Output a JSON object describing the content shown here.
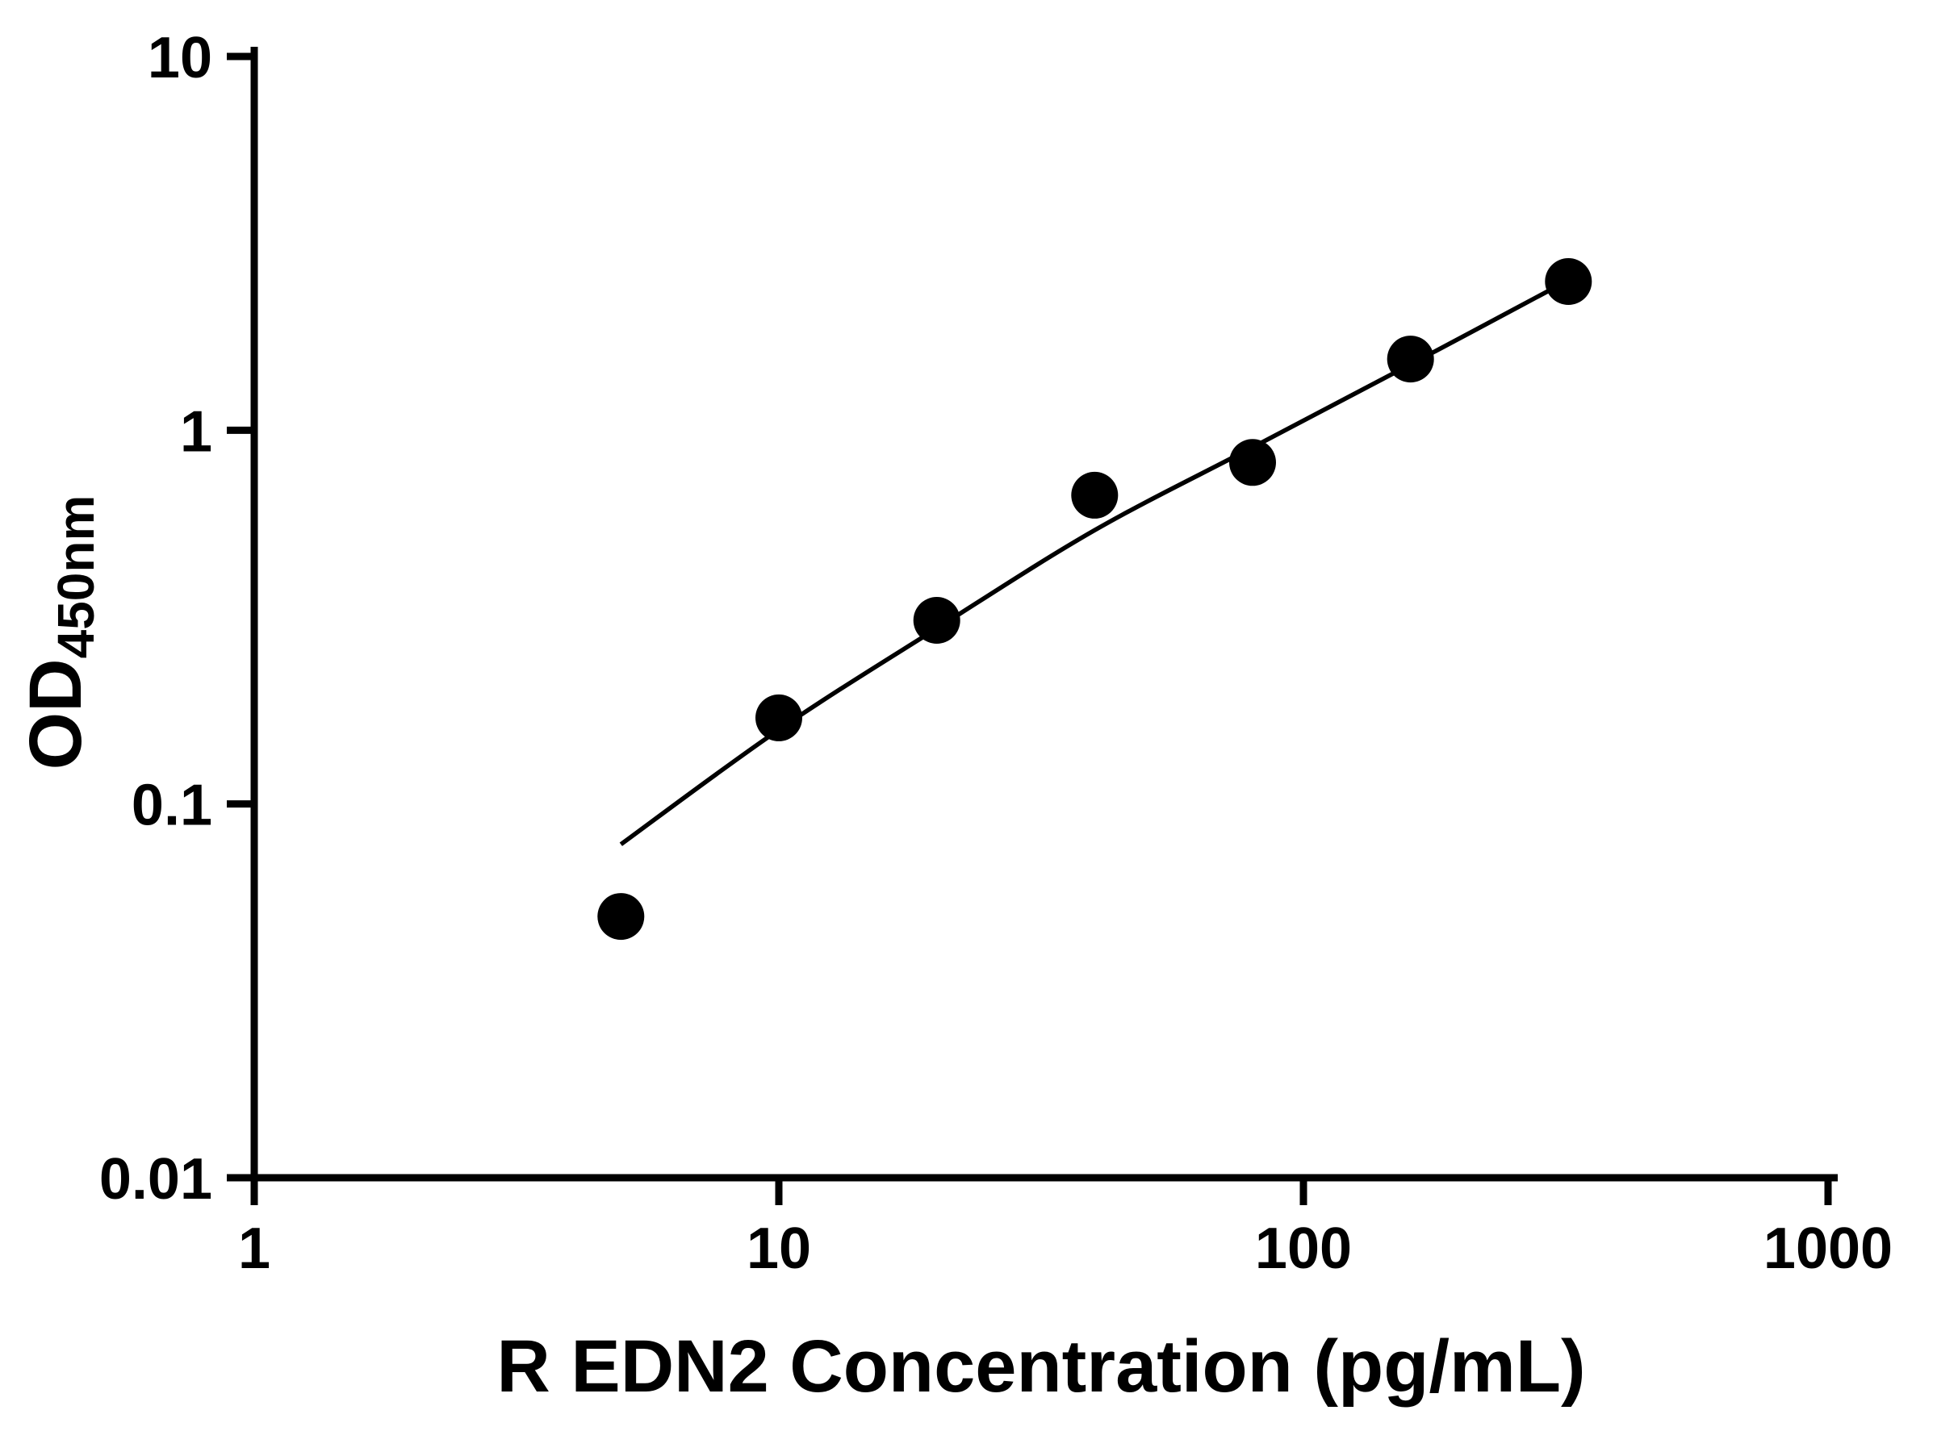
{
  "chart_data": {
    "type": "scatter",
    "title": "",
    "xlabel": "R EDN2 Concentration (pg/mL)",
    "ylabel": "OD450nm",
    "ylabel_main": "OD",
    "ylabel_sub": "450nm",
    "x_scale": "log",
    "y_scale": "log",
    "xlim": [
      1,
      1000
    ],
    "ylim": [
      0.01,
      10
    ],
    "x_ticks": [
      1,
      10,
      100,
      1000
    ],
    "y_ticks": [
      0.01,
      0.1,
      1,
      10
    ],
    "grid": false,
    "legend": false,
    "marker_color": "#000000",
    "line_color": "#000000",
    "series": [
      {
        "name": "standard-points",
        "marker": "circle",
        "color": "#000000",
        "x": [
          5,
          10,
          20,
          40,
          80,
          160,
          320
        ],
        "y": [
          0.05,
          0.17,
          0.31,
          0.67,
          0.82,
          1.55,
          2.5
        ]
      }
    ],
    "fit_curve": {
      "name": "standard-curve-fit",
      "color": "#000000",
      "x": [
        5,
        10,
        20,
        40,
        80,
        160,
        320
      ],
      "y": [
        0.078,
        0.158,
        0.295,
        0.54,
        0.9,
        1.5,
        2.52
      ]
    }
  }
}
